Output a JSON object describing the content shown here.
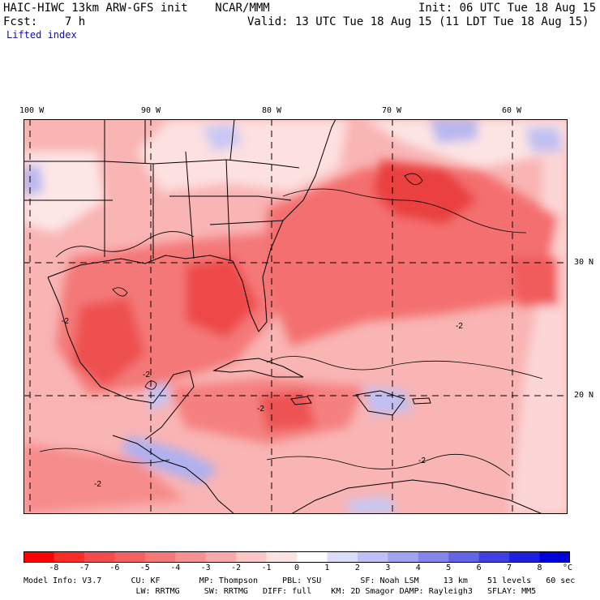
{
  "header": {
    "title": "HAIC-HIWC 13km ARW-GFS init",
    "org": "NCAR/MMM",
    "init": "Init: 06 UTC Tue 18 Aug 15",
    "fcst_label": "Fcst:",
    "fcst_value": "7 h",
    "valid": "Valid: 13 UTC Tue 18 Aug 15 (11 LDT Tue 18 Aug 15)",
    "field": "Lifted index"
  },
  "map": {
    "lon_labels": [
      "100 W",
      "90 W",
      "80 W",
      "70 W",
      "60 W"
    ],
    "lat_labels": [
      "30 N",
      "20 N"
    ],
    "contour_labels": [
      "-2",
      "-2",
      "-2",
      "-2",
      "-2",
      "-2"
    ],
    "colors": {
      "strong_negative": "#ee3a3a",
      "negative": "#f56b6b",
      "weak_negative": "#f9a7a7",
      "near_zero": "#fdd6d6",
      "positive_weak": "#d0d0f8",
      "positive": "#a8a8f0"
    }
  },
  "colorbar": {
    "labels": [
      "-8",
      "-7",
      "-6",
      "-5",
      "-4",
      "-3",
      "-2",
      "-1",
      "0",
      "1",
      "2",
      "3",
      "4",
      "5",
      "6",
      "7",
      "8"
    ],
    "unit": "°C",
    "colors": [
      "#ff0000",
      "#ff2a2a",
      "#f74a4a",
      "#f56060",
      "#f57878",
      "#f79090",
      "#f8aaaa",
      "#fbc6c6",
      "#fde2e2",
      "#ffffff",
      "#dcdcfa",
      "#c0c0f6",
      "#a2a2f0",
      "#8484ec",
      "#6464e6",
      "#4040e0",
      "#2020dc",
      "#0000d8"
    ]
  },
  "footer": {
    "line1": "Model Info: V3.7      CU: KF        MP: Thompson     PBL: YSU        SF: Noah LSM     13 km    51 levels   60 sec",
    "line2": "                       LW: RRTMG     SW: RRTMG   DIFF: full    KM: 2D Smagor DAMP: Rayleigh3   SFLAY: MM5"
  }
}
